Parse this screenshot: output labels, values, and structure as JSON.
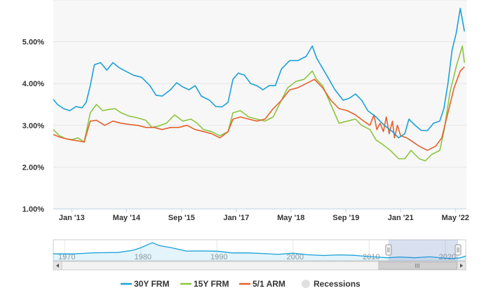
{
  "chart_data": {
    "type": "line",
    "title": "",
    "xlabel": "",
    "ylabel": "",
    "x_range": [
      2012.55,
      2022.6
    ],
    "ylim": [
      1.0,
      6.0
    ],
    "y_ticks": [
      {
        "value": 1.0,
        "label": "1.00%"
      },
      {
        "value": 2.0,
        "label": "2.00%"
      },
      {
        "value": 3.0,
        "label": "3.00%"
      },
      {
        "value": 4.0,
        "label": "4.00%"
      },
      {
        "value": 5.0,
        "label": "5.00%"
      }
    ],
    "x_ticks": [
      {
        "value": 2013.0,
        "label": "Jan '13"
      },
      {
        "value": 2014.33,
        "label": "May '14"
      },
      {
        "value": 2015.67,
        "label": "Sep '15"
      },
      {
        "value": 2017.0,
        "label": "Jan '17"
      },
      {
        "value": 2018.33,
        "label": "May '18"
      },
      {
        "value": 2019.67,
        "label": "Sep '19"
      },
      {
        "value": 2021.0,
        "label": "Jan '21"
      },
      {
        "value": 2022.33,
        "label": "May '22"
      }
    ],
    "series": [
      {
        "name": "30Y FRM",
        "color": "#1ba1d8",
        "points": [
          [
            2012.55,
            3.62
          ],
          [
            2012.65,
            3.5
          ],
          [
            2012.8,
            3.4
          ],
          [
            2012.95,
            3.35
          ],
          [
            2013.1,
            3.45
          ],
          [
            2013.25,
            3.42
          ],
          [
            2013.35,
            3.55
          ],
          [
            2013.45,
            3.95
          ],
          [
            2013.55,
            4.45
          ],
          [
            2013.7,
            4.5
          ],
          [
            2013.85,
            4.32
          ],
          [
            2014.0,
            4.5
          ],
          [
            2014.15,
            4.38
          ],
          [
            2014.3,
            4.3
          ],
          [
            2014.5,
            4.2
          ],
          [
            2014.7,
            4.15
          ],
          [
            2014.9,
            3.95
          ],
          [
            2015.05,
            3.72
          ],
          [
            2015.2,
            3.7
          ],
          [
            2015.4,
            3.85
          ],
          [
            2015.55,
            4.02
          ],
          [
            2015.7,
            3.92
          ],
          [
            2015.85,
            3.85
          ],
          [
            2016.0,
            3.95
          ],
          [
            2016.15,
            3.7
          ],
          [
            2016.35,
            3.6
          ],
          [
            2016.5,
            3.45
          ],
          [
            2016.65,
            3.44
          ],
          [
            2016.8,
            3.55
          ],
          [
            2016.92,
            4.1
          ],
          [
            2017.05,
            4.25
          ],
          [
            2017.2,
            4.2
          ],
          [
            2017.35,
            4.0
          ],
          [
            2017.5,
            3.95
          ],
          [
            2017.65,
            3.85
          ],
          [
            2017.8,
            3.95
          ],
          [
            2017.95,
            3.95
          ],
          [
            2018.1,
            4.35
          ],
          [
            2018.3,
            4.55
          ],
          [
            2018.5,
            4.55
          ],
          [
            2018.7,
            4.65
          ],
          [
            2018.85,
            4.9
          ],
          [
            2018.95,
            4.62
          ],
          [
            2019.05,
            4.45
          ],
          [
            2019.2,
            4.2
          ],
          [
            2019.4,
            3.85
          ],
          [
            2019.6,
            3.6
          ],
          [
            2019.75,
            3.65
          ],
          [
            2019.9,
            3.75
          ],
          [
            2020.05,
            3.6
          ],
          [
            2020.2,
            3.35
          ],
          [
            2020.4,
            3.2
          ],
          [
            2020.6,
            3.0
          ],
          [
            2020.8,
            2.85
          ],
          [
            2020.95,
            2.7
          ],
          [
            2021.1,
            2.8
          ],
          [
            2021.2,
            3.15
          ],
          [
            2021.35,
            3.0
          ],
          [
            2021.5,
            2.88
          ],
          [
            2021.65,
            2.87
          ],
          [
            2021.8,
            3.05
          ],
          [
            2021.95,
            3.1
          ],
          [
            2022.05,
            3.4
          ],
          [
            2022.15,
            4.0
          ],
          [
            2022.25,
            4.8
          ],
          [
            2022.35,
            5.2
          ],
          [
            2022.45,
            5.8
          ],
          [
            2022.55,
            5.25
          ]
        ]
      },
      {
        "name": "15Y FRM",
        "color": "#8cc63f",
        "points": [
          [
            2012.55,
            2.9
          ],
          [
            2012.7,
            2.75
          ],
          [
            2012.85,
            2.68
          ],
          [
            2013.0,
            2.66
          ],
          [
            2013.15,
            2.7
          ],
          [
            2013.3,
            2.6
          ],
          [
            2013.45,
            3.3
          ],
          [
            2013.6,
            3.5
          ],
          [
            2013.75,
            3.35
          ],
          [
            2013.9,
            3.38
          ],
          [
            2014.05,
            3.4
          ],
          [
            2014.2,
            3.3
          ],
          [
            2014.4,
            3.22
          ],
          [
            2014.6,
            3.18
          ],
          [
            2014.8,
            3.12
          ],
          [
            2014.95,
            2.95
          ],
          [
            2015.1,
            2.98
          ],
          [
            2015.3,
            3.05
          ],
          [
            2015.5,
            3.25
          ],
          [
            2015.7,
            3.1
          ],
          [
            2015.9,
            3.15
          ],
          [
            2016.05,
            3.05
          ],
          [
            2016.2,
            2.9
          ],
          [
            2016.4,
            2.85
          ],
          [
            2016.6,
            2.75
          ],
          [
            2016.8,
            2.85
          ],
          [
            2016.92,
            3.3
          ],
          [
            2017.1,
            3.35
          ],
          [
            2017.3,
            3.2
          ],
          [
            2017.5,
            3.15
          ],
          [
            2017.7,
            3.1
          ],
          [
            2017.9,
            3.2
          ],
          [
            2018.05,
            3.5
          ],
          [
            2018.25,
            3.9
          ],
          [
            2018.45,
            4.05
          ],
          [
            2018.65,
            4.1
          ],
          [
            2018.85,
            4.3
          ],
          [
            2018.95,
            4.1
          ],
          [
            2019.1,
            3.95
          ],
          [
            2019.3,
            3.5
          ],
          [
            2019.5,
            3.05
          ],
          [
            2019.7,
            3.1
          ],
          [
            2019.9,
            3.15
          ],
          [
            2020.05,
            3.0
          ],
          [
            2020.25,
            2.9
          ],
          [
            2020.4,
            2.65
          ],
          [
            2020.55,
            2.55
          ],
          [
            2020.75,
            2.4
          ],
          [
            2020.95,
            2.2
          ],
          [
            2021.1,
            2.2
          ],
          [
            2021.25,
            2.4
          ],
          [
            2021.45,
            2.2
          ],
          [
            2021.6,
            2.15
          ],
          [
            2021.75,
            2.3
          ],
          [
            2021.95,
            2.4
          ],
          [
            2022.05,
            2.85
          ],
          [
            2022.2,
            3.8
          ],
          [
            2022.35,
            4.4
          ],
          [
            2022.5,
            4.9
          ],
          [
            2022.55,
            4.5
          ]
        ]
      },
      {
        "name": "5/1 ARM",
        "color": "#e5612d",
        "points": [
          [
            2012.55,
            2.78
          ],
          [
            2012.7,
            2.72
          ],
          [
            2012.85,
            2.68
          ],
          [
            2013.0,
            2.65
          ],
          [
            2013.15,
            2.63
          ],
          [
            2013.3,
            2.6
          ],
          [
            2013.45,
            3.1
          ],
          [
            2013.6,
            3.12
          ],
          [
            2013.8,
            3.0
          ],
          [
            2014.0,
            3.1
          ],
          [
            2014.2,
            3.05
          ],
          [
            2014.4,
            3.02
          ],
          [
            2014.6,
            3.0
          ],
          [
            2014.8,
            2.95
          ],
          [
            2015.0,
            2.95
          ],
          [
            2015.2,
            2.9
          ],
          [
            2015.4,
            2.95
          ],
          [
            2015.6,
            2.95
          ],
          [
            2015.8,
            3.0
          ],
          [
            2016.0,
            2.9
          ],
          [
            2016.2,
            2.85
          ],
          [
            2016.4,
            2.8
          ],
          [
            2016.6,
            2.7
          ],
          [
            2016.8,
            2.85
          ],
          [
            2016.92,
            3.15
          ],
          [
            2017.1,
            3.2
          ],
          [
            2017.3,
            3.15
          ],
          [
            2017.5,
            3.1
          ],
          [
            2017.7,
            3.15
          ],
          [
            2017.9,
            3.4
          ],
          [
            2018.1,
            3.6
          ],
          [
            2018.3,
            3.85
          ],
          [
            2018.5,
            3.9
          ],
          [
            2018.7,
            4.0
          ],
          [
            2018.9,
            4.1
          ],
          [
            2019.1,
            3.9
          ],
          [
            2019.3,
            3.6
          ],
          [
            2019.5,
            3.4
          ],
          [
            2019.7,
            3.35
          ],
          [
            2019.9,
            3.25
          ],
          [
            2020.1,
            3.1
          ],
          [
            2020.25,
            3.0
          ],
          [
            2020.35,
            3.25
          ],
          [
            2020.42,
            2.9
          ],
          [
            2020.5,
            3.05
          ],
          [
            2020.58,
            2.85
          ],
          [
            2020.65,
            3.2
          ],
          [
            2020.72,
            2.8
          ],
          [
            2020.8,
            3.1
          ],
          [
            2020.85,
            2.7
          ],
          [
            2020.92,
            3.0
          ],
          [
            2021.0,
            2.75
          ],
          [
            2021.15,
            2.7
          ],
          [
            2021.3,
            2.6
          ],
          [
            2021.45,
            2.5
          ],
          [
            2021.65,
            2.4
          ],
          [
            2021.85,
            2.5
          ],
          [
            2022.0,
            2.7
          ],
          [
            2022.15,
            3.3
          ],
          [
            2022.3,
            3.9
          ],
          [
            2022.45,
            4.3
          ],
          [
            2022.55,
            4.4
          ]
        ]
      }
    ],
    "navigator": {
      "x_range": [
        1968.5,
        2022.7
      ],
      "ticks": [
        {
          "value": 1970,
          "label": "1970"
        },
        {
          "value": 1980,
          "label": "1980"
        },
        {
          "value": 1990,
          "label": "1990"
        },
        {
          "value": 2000,
          "label": "2000"
        },
        {
          "value": 2010,
          "label": "2010"
        },
        {
          "value": 2020,
          "label": "2020"
        }
      ],
      "selected_range": [
        2012.55,
        2022.6
      ],
      "series_points": [
        [
          1968.5,
          7.4
        ],
        [
          1971,
          7.3
        ],
        [
          1974,
          8.5
        ],
        [
          1977,
          8.8
        ],
        [
          1979,
          11
        ],
        [
          1980,
          13.5
        ],
        [
          1981.5,
          18.4
        ],
        [
          1982.5,
          15.5
        ],
        [
          1984,
          13.5
        ],
        [
          1986,
          10.2
        ],
        [
          1988,
          10.3
        ],
        [
          1990,
          10.1
        ],
        [
          1992,
          8.4
        ],
        [
          1994,
          8.4
        ],
        [
          1996,
          7.8
        ],
        [
          1998,
          6.9
        ],
        [
          2000,
          8.1
        ],
        [
          2002,
          6.5
        ],
        [
          2004,
          5.8
        ],
        [
          2006,
          6.4
        ],
        [
          2008,
          6.0
        ],
        [
          2010,
          4.7
        ],
        [
          2012.5,
          3.6
        ],
        [
          2014,
          4.3
        ],
        [
          2016,
          3.6
        ],
        [
          2018,
          4.5
        ],
        [
          2020,
          3.2
        ],
        [
          2021,
          2.8
        ],
        [
          2022,
          3.5
        ],
        [
          2022.7,
          5.3
        ]
      ]
    },
    "legend": [
      {
        "label": "30Y FRM",
        "color": "#1ba1d8",
        "type": "line"
      },
      {
        "label": "15Y FRM",
        "color": "#8cc63f",
        "type": "line"
      },
      {
        "label": "5/1 ARM",
        "color": "#e5612d",
        "type": "line"
      },
      {
        "label": "Recessions",
        "color": "#e0e0e0",
        "type": "dot"
      }
    ],
    "scrollbar_grip": "III"
  }
}
